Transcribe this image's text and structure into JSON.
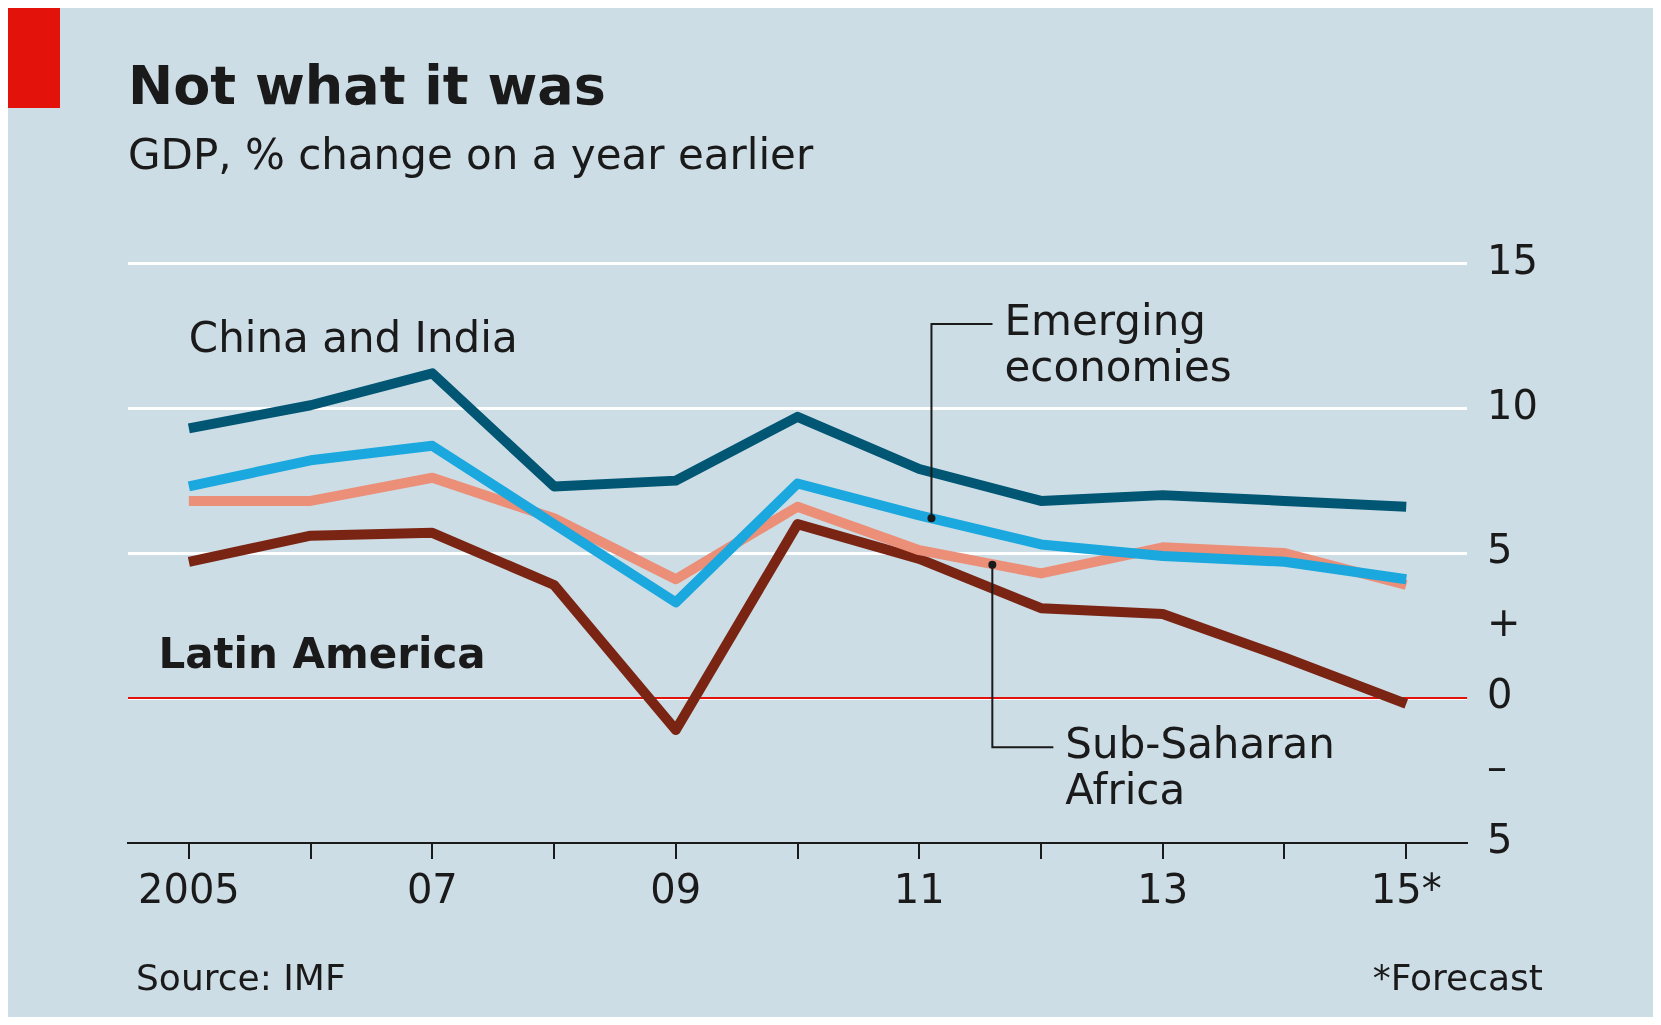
{
  "chart_data": {
    "type": "line",
    "title": "Not what it was",
    "subtitle": "GDP, % change on a year earlier",
    "categories": [
      "2005",
      null,
      "07",
      null,
      "09",
      null,
      "11",
      null,
      "13",
      null,
      "15*"
    ],
    "series": [
      {
        "name": "China and India",
        "color": "#005673",
        "values": [
          9.3,
          10.1,
          11.2,
          7.3,
          7.5,
          9.7,
          7.9,
          6.8,
          7.0,
          6.8,
          6.6
        ]
      },
      {
        "name": "Emerging economies",
        "color": "#1ba8de",
        "values": [
          7.3,
          8.2,
          8.7,
          6.0,
          3.3,
          7.4,
          6.3,
          5.3,
          4.9,
          4.7,
          4.1
        ]
      },
      {
        "name": "Sub-Saharan Africa",
        "color": "#eb8f78",
        "values": [
          6.8,
          6.8,
          7.6,
          6.2,
          4.1,
          6.6,
          5.1,
          4.3,
          5.2,
          5.0,
          3.9
        ]
      },
      {
        "name": "Latin America",
        "color": "#7a2414",
        "values": [
          4.7,
          5.6,
          5.7,
          3.9,
          -1.1,
          6.0,
          4.8,
          3.1,
          2.9,
          1.4,
          -0.2
        ]
      }
    ],
    "ylim": [
      -5,
      15
    ],
    "yticks": [
      15,
      10,
      5,
      {
        "value": 2.5,
        "label": "+"
      },
      0,
      {
        "value": -2.5,
        "label": "–"
      },
      {
        "value": -5,
        "label": "5"
      }
    ],
    "grid": "y",
    "ref_lines": [
      {
        "axis": "y",
        "value": 0,
        "color": "#e3120b"
      }
    ],
    "annotations": [
      "Source: IMF",
      "*Forecast"
    ]
  }
}
